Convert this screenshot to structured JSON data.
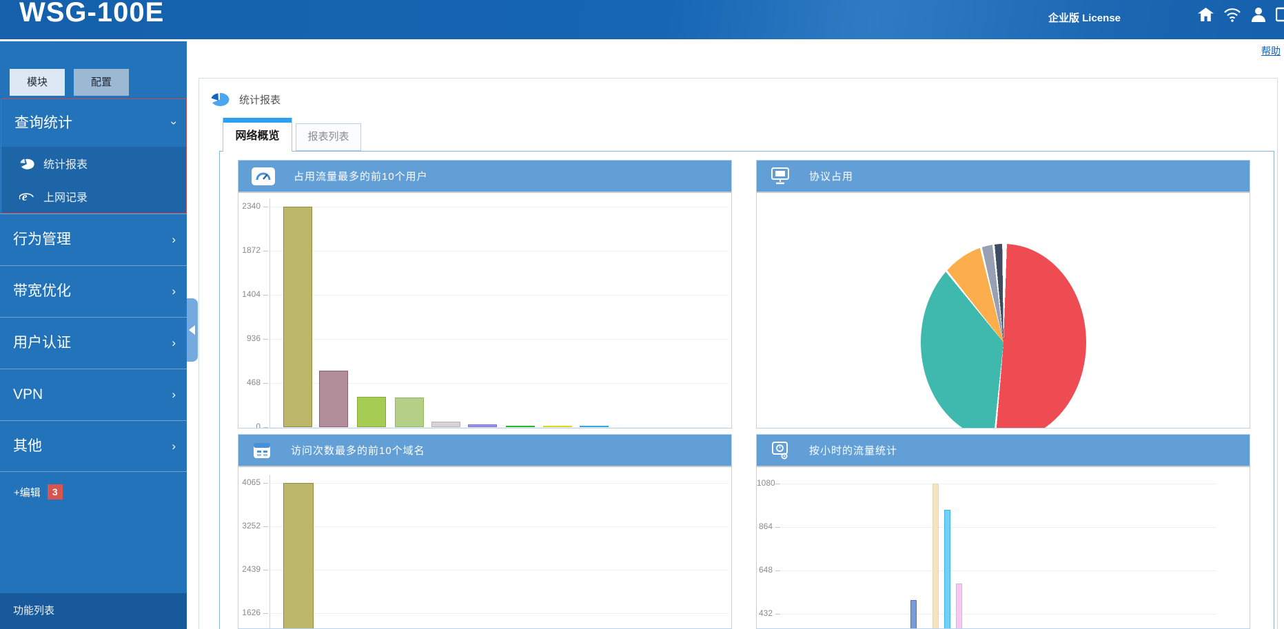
{
  "header": {
    "logo": "WSG-100E",
    "license_label": "企业版 License",
    "icons": [
      "home-icon",
      "wifi-icon",
      "user-icon",
      "logout-icon"
    ]
  },
  "help_link": "帮助",
  "sidebar": {
    "tabs": [
      {
        "label": "模块",
        "active": true
      },
      {
        "label": "配置",
        "active": false
      }
    ],
    "expanded_group": {
      "label": "查询统计",
      "icon": "chevron-down-icon",
      "items": [
        {
          "icon": "pie-chart-icon",
          "label": "统计报表"
        },
        {
          "icon": "ie-browser-icon",
          "label": "上网记录"
        }
      ]
    },
    "groups": [
      {
        "label": "行为管理",
        "icon": "chevron-right-icon"
      },
      {
        "label": "带宽优化",
        "icon": "chevron-right-icon"
      },
      {
        "label": "用户认证",
        "icon": "chevron-right-icon"
      },
      {
        "label": "VPN",
        "icon": "chevron-right-icon"
      },
      {
        "label": "其他",
        "icon": "chevron-right-icon"
      }
    ],
    "edit_label": "+编辑",
    "edit_badge": "3",
    "footer_label": "功能列表"
  },
  "main": {
    "section_title": "统计报表",
    "section_icon": "pie-chart-icon",
    "tabs": [
      {
        "label": "网络概览",
        "active": true
      },
      {
        "label": "报表列表",
        "active": false
      }
    ]
  },
  "chart_data": [
    {
      "type": "bar",
      "title": "占用流量最多的前10个用户",
      "icon": "gauge-icon",
      "ylim": [
        0,
        2340
      ],
      "yticks": [
        2340,
        1872,
        1404,
        936,
        468,
        0
      ],
      "values": [
        2340,
        600,
        322,
        314,
        58,
        29,
        18,
        14,
        14
      ],
      "bar_colors": [
        "#bdb76b",
        "#b28e9b",
        "#a6cc53",
        "#b5cf87",
        "#d6d2d6",
        "#9f97e8",
        "#3ed43e",
        "#f7f73f",
        "#66ccf2"
      ],
      "bar_borders": [
        "#8f8b3e",
        "#8d5f70",
        "#84a839",
        "#8fb75e",
        "#b9b3b9",
        "#7a71d6",
        "#22b822",
        "#d9d916",
        "#2fa8dd"
      ],
      "grid": true
    },
    {
      "type": "pie",
      "title": "协议占用",
      "icon": "protocol-monitor-icon",
      "slices": [
        {
          "percent": 51.1,
          "color": "#ee4c52"
        },
        {
          "percent": 37.8,
          "color": "#3fb9ae"
        },
        {
          "percent": 7.0,
          "color": "#fbae4b"
        },
        {
          "percent": 2.1,
          "color": "#98a0b4"
        },
        {
          "percent": 1.6,
          "color": "#3f4d63"
        }
      ]
    },
    {
      "type": "bar",
      "title": "访问次数最多的前10个域名",
      "icon": "domain-calendar-icon",
      "ylim": [
        0,
        4065
      ],
      "yticks": [
        4065,
        3252,
        2439,
        1626
      ],
      "values": [
        4065
      ],
      "bar_colors": [
        "#bdb76b"
      ],
      "bar_borders": [
        "#8f8b3e"
      ],
      "grid": true
    },
    {
      "type": "bar",
      "title": "按小时的流量统计",
      "icon": "hourly-clock-icon",
      "ylim": [
        0,
        1080
      ],
      "yticks": [
        1080,
        864,
        648,
        432
      ],
      "values": [
        500,
        1080,
        950,
        583
      ],
      "bar_colors": [
        "#7b9ad9",
        "#f8e3c0",
        "#74cff2",
        "#f6c9f4"
      ],
      "bar_borders": [
        "#5374c4",
        "#eed2a6",
        "#3ab5eb",
        "#eaaae8"
      ],
      "grid": true
    }
  ]
}
